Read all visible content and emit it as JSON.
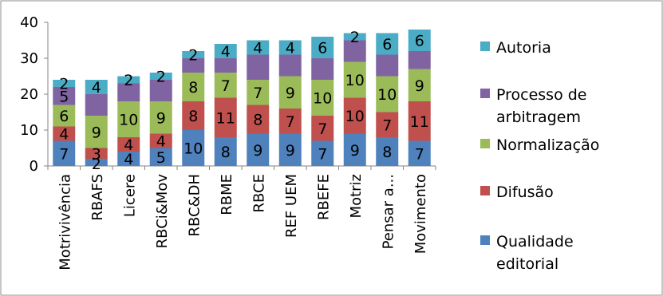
{
  "chart_data": {
    "type": "bar",
    "stacked": true,
    "categories": [
      "Motrivivência",
      "RBAFS",
      "Licere",
      "RBCi&Mov",
      "RBC&DH",
      "RBME",
      "RBCE",
      "REF UEM",
      "RBEFE",
      "Motriz",
      "Pensar a...",
      "Movimento"
    ],
    "series": [
      {
        "name": "Qualidade editorial",
        "color": "#4f81bd",
        "values": [
          7,
          2,
          4,
          5,
          10,
          8,
          9,
          9,
          7,
          9,
          8,
          7
        ]
      },
      {
        "name": "Difusão",
        "color": "#c0504d",
        "values": [
          4,
          3,
          4,
          4,
          8,
          11,
          8,
          7,
          7,
          10,
          7,
          11
        ]
      },
      {
        "name": "Normalização",
        "color": "#9bbb59",
        "values": [
          6,
          9,
          10,
          9,
          8,
          7,
          7,
          9,
          10,
          10,
          10,
          9
        ]
      },
      {
        "name": "Processo de arbitragem",
        "color": "#8064a2",
        "values": [
          5,
          6,
          5,
          6,
          4,
          4,
          7,
          6,
          6,
          6,
          6,
          5
        ]
      },
      {
        "name": "Autoria",
        "color": "#4bacc6",
        "values": [
          2,
          4,
          2,
          2,
          2,
          4,
          4,
          4,
          6,
          2,
          6,
          6
        ]
      }
    ],
    "data_labels": [
      [
        "7",
        "2",
        "4",
        "5",
        "10",
        "8",
        "9",
        "9",
        "7",
        "9",
        "8",
        "7"
      ],
      [
        "4",
        "3",
        "4",
        "4",
        "8",
        "11",
        "8",
        "7",
        "7",
        "10",
        "7",
        "11"
      ],
      [
        "6",
        "9",
        "10",
        "9",
        "8",
        "7",
        "7",
        "9",
        "10",
        "10",
        "10",
        "9"
      ],
      [
        "5",
        "",
        "",
        "",
        "",
        "",
        "",
        "",
        "",
        "",
        "",
        ""
      ],
      [
        "2",
        "4",
        "2",
        "2",
        "2",
        "4",
        "4",
        "4",
        "6",
        "2",
        "6",
        "6"
      ]
    ],
    "ylim": [
      0,
      40
    ],
    "yticks": [
      0,
      10,
      20,
      30,
      40
    ],
    "legend_items": [
      {
        "lines": [
          "Autoria"
        ],
        "color": "#4bacc6"
      },
      {
        "lines": [
          "Processo de",
          "arbitragem"
        ],
        "color": "#8064a2"
      },
      {
        "lines": [
          "Normalização"
        ],
        "color": "#9bbb59"
      },
      {
        "lines": [
          "Difusão"
        ],
        "color": "#c0504d"
      },
      {
        "lines": [
          "Qualidade",
          "editorial"
        ],
        "color": "#4f81bd"
      }
    ],
    "legend_position": "right",
    "grid": false
  }
}
